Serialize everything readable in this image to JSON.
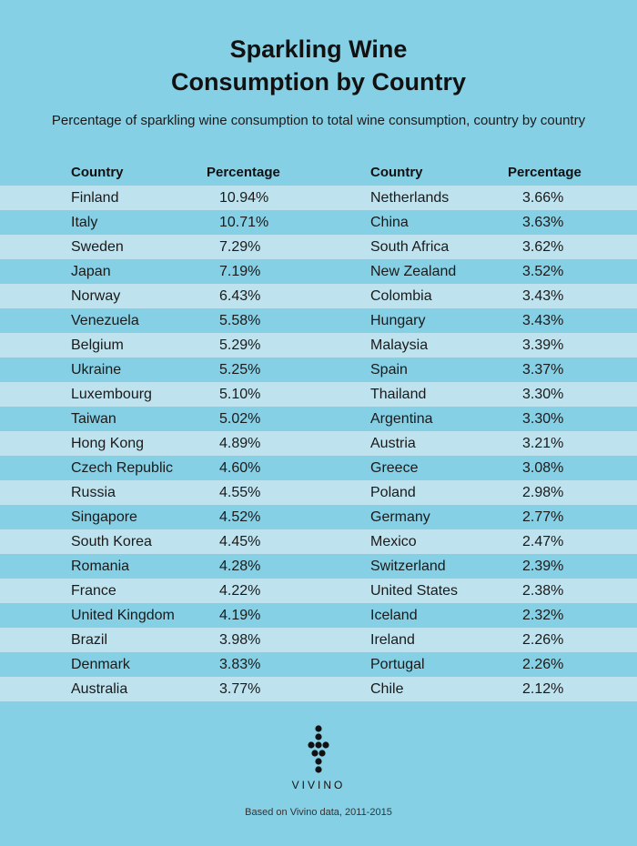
{
  "chart_data": {
    "type": "table",
    "title_line1": "Sparkling Wine",
    "title_line2": "Consumption by Country",
    "subtitle": "Percentage of sparkling wine consumption to total wine consumption, country by country",
    "columns": [
      "Country",
      "Percentage",
      "Country",
      "Percentage"
    ],
    "rows": [
      [
        "Finland",
        "10.94%",
        "Netherlands",
        "3.66%"
      ],
      [
        "Italy",
        "10.71%",
        "China",
        "3.63%"
      ],
      [
        "Sweden",
        "7.29%",
        "South Africa",
        "3.62%"
      ],
      [
        "Japan",
        "7.19%",
        "New Zealand",
        "3.52%"
      ],
      [
        "Norway",
        "6.43%",
        "Colombia",
        "3.43%"
      ],
      [
        "Venezuela",
        "5.58%",
        "Hungary",
        "3.43%"
      ],
      [
        "Belgium",
        "5.29%",
        "Malaysia",
        "3.39%"
      ],
      [
        "Ukraine",
        "5.25%",
        "Spain",
        "3.37%"
      ],
      [
        "Luxembourg",
        "5.10%",
        "Thailand",
        "3.30%"
      ],
      [
        "Taiwan",
        "5.02%",
        "Argentina",
        "3.30%"
      ],
      [
        "Hong Kong",
        "4.89%",
        "Austria",
        "3.21%"
      ],
      [
        "Czech Republic",
        "4.60%",
        "Greece",
        "3.08%"
      ],
      [
        "Russia",
        "4.55%",
        "Poland",
        "2.98%"
      ],
      [
        "Singapore",
        "4.52%",
        "Germany",
        "2.77%"
      ],
      [
        "South Korea",
        "4.45%",
        "Mexico",
        "2.47%"
      ],
      [
        "Romania",
        "4.28%",
        "Switzerland",
        "2.39%"
      ],
      [
        "France",
        "4.22%",
        "United States",
        "2.38%"
      ],
      [
        "United Kingdom",
        "4.19%",
        "Iceland",
        "2.32%"
      ],
      [
        "Brazil",
        "3.98%",
        "Ireland",
        "2.26%"
      ],
      [
        "Denmark",
        "3.83%",
        "Portugal",
        "2.26%"
      ],
      [
        "Australia",
        "3.77%",
        "Chile",
        "2.12%"
      ]
    ]
  },
  "branding": {
    "name": "VIVINO",
    "logo_icon": "grape-cluster-icon",
    "source": "Based on Vivino data, 2011-2015"
  },
  "colors": {
    "background": "#86d0e6",
    "row_shade": "#bfe3ee",
    "text": "#1a1a1a"
  }
}
